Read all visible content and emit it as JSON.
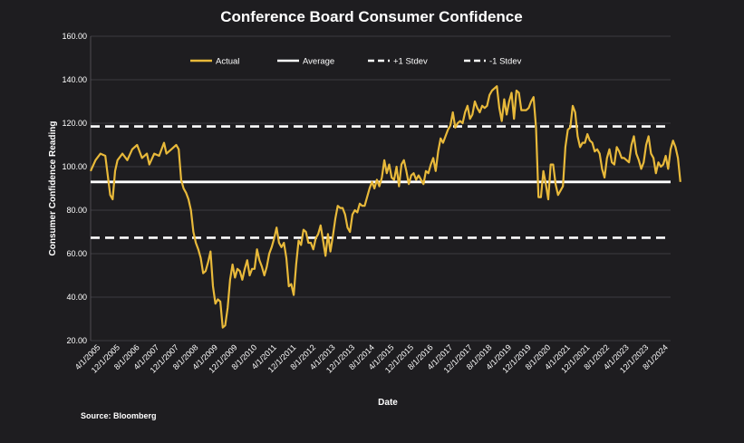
{
  "chart_data": {
    "type": "line",
    "title": "Conference Board Consumer Confidence",
    "xlabel": "Date",
    "ylabel": "Consumer Confidence Reading",
    "ylim": [
      20,
      160
    ],
    "yticks": [
      "20.00",
      "40.00",
      "60.00",
      "80.00",
      "100.00",
      "120.00",
      "140.00",
      "160.00"
    ],
    "grid": "horizontal",
    "legend_position": "top",
    "x_tick_labels": [
      "4/1/2005",
      "12/1/2005",
      "8/1/2006",
      "4/1/2007",
      "12/1/2007",
      "8/1/2008",
      "4/1/2009",
      "12/1/2009",
      "8/1/2010",
      "4/1/2011",
      "12/1/2011",
      "8/1/2012",
      "4/1/2013",
      "12/1/2013",
      "8/1/2014",
      "4/1/2015",
      "12/1/2015",
      "8/1/2016",
      "4/1/2017",
      "12/1/2017",
      "8/1/2018",
      "4/1/2019",
      "12/1/2019",
      "8/1/2020",
      "4/1/2021",
      "12/1/2021",
      "8/1/2022",
      "4/1/2023",
      "12/1/2023",
      "8/1/2024"
    ],
    "x_range": [
      "2005-01",
      "2024-10"
    ],
    "series": [
      {
        "name": "Actual",
        "color": "#e8b93a",
        "style": "solid",
        "points": [
          [
            "2005-01",
            98
          ],
          [
            "2005-03",
            103
          ],
          [
            "2005-05",
            106
          ],
          [
            "2005-07",
            105
          ],
          [
            "2005-09",
            87
          ],
          [
            "2005-10",
            85
          ],
          [
            "2005-11",
            98
          ],
          [
            "2005-12",
            103
          ],
          [
            "2006-02",
            106
          ],
          [
            "2006-04",
            103
          ],
          [
            "2006-06",
            108
          ],
          [
            "2006-08",
            110
          ],
          [
            "2006-10",
            104
          ],
          [
            "2006-12",
            106
          ],
          [
            "2007-01",
            101
          ],
          [
            "2007-03",
            106
          ],
          [
            "2007-05",
            105
          ],
          [
            "2007-07",
            111
          ],
          [
            "2007-08",
            106
          ],
          [
            "2007-10",
            108
          ],
          [
            "2007-12",
            110
          ],
          [
            "2008-01",
            108
          ],
          [
            "2008-02",
            94
          ],
          [
            "2008-03",
            90
          ],
          [
            "2008-04",
            88
          ],
          [
            "2008-05",
            85
          ],
          [
            "2008-06",
            80
          ],
          [
            "2008-07",
            70
          ],
          [
            "2008-08",
            65
          ],
          [
            "2008-09",
            62
          ],
          [
            "2008-10",
            58
          ],
          [
            "2008-11",
            51
          ],
          [
            "2008-12",
            52
          ],
          [
            "2009-01",
            56
          ],
          [
            "2009-02",
            61
          ],
          [
            "2009-03",
            45
          ],
          [
            "2009-04",
            37
          ],
          [
            "2009-05",
            39
          ],
          [
            "2009-06",
            38
          ],
          [
            "2009-07",
            26
          ],
          [
            "2009-08",
            27
          ],
          [
            "2009-09",
            35
          ],
          [
            "2009-10",
            48
          ],
          [
            "2009-11",
            55
          ],
          [
            "2009-12",
            49
          ],
          [
            "2010-01",
            53
          ],
          [
            "2010-02",
            52
          ],
          [
            "2010-03",
            48
          ],
          [
            "2010-04",
            53
          ],
          [
            "2010-05",
            57
          ],
          [
            "2010-06",
            50
          ],
          [
            "2010-07",
            53
          ],
          [
            "2010-08",
            53
          ],
          [
            "2010-09",
            62
          ],
          [
            "2010-10",
            57
          ],
          [
            "2010-11",
            54
          ],
          [
            "2010-12",
            50
          ],
          [
            "2011-01",
            54
          ],
          [
            "2011-02",
            60
          ],
          [
            "2011-03",
            63
          ],
          [
            "2011-04",
            67
          ],
          [
            "2011-05",
            72
          ],
          [
            "2011-06",
            65
          ],
          [
            "2011-07",
            63
          ],
          [
            "2011-08",
            65
          ],
          [
            "2011-09",
            58
          ],
          [
            "2011-10",
            45
          ],
          [
            "2011-11",
            46
          ],
          [
            "2011-12",
            41
          ],
          [
            "2012-01",
            55
          ],
          [
            "2012-02",
            66
          ],
          [
            "2012-03",
            64
          ],
          [
            "2012-04",
            71
          ],
          [
            "2012-05",
            70
          ],
          [
            "2012-06",
            65
          ],
          [
            "2012-07",
            65
          ],
          [
            "2012-08",
            62
          ],
          [
            "2012-09",
            67
          ],
          [
            "2012-10",
            69
          ],
          [
            "2012-11",
            73
          ],
          [
            "2012-12",
            66
          ],
          [
            "2013-01",
            59
          ],
          [
            "2013-02",
            69
          ],
          [
            "2013-03",
            61
          ],
          [
            "2013-04",
            68
          ],
          [
            "2013-05",
            76
          ],
          [
            "2013-06",
            82
          ],
          [
            "2013-07",
            81
          ],
          [
            "2013-08",
            81
          ],
          [
            "2013-09",
            78
          ],
          [
            "2013-10",
            72
          ],
          [
            "2013-11",
            70
          ],
          [
            "2013-12",
            78
          ],
          [
            "2014-01",
            80
          ],
          [
            "2014-02",
            79
          ],
          [
            "2014-03",
            83
          ],
          [
            "2014-04",
            82
          ],
          [
            "2014-05",
            82
          ],
          [
            "2014-06",
            86
          ],
          [
            "2014-07",
            90
          ],
          [
            "2014-08",
            93
          ],
          [
            "2014-09",
            90
          ],
          [
            "2014-10",
            94
          ],
          [
            "2014-11",
            91
          ],
          [
            "2014-12",
            95
          ],
          [
            "2015-01",
            103
          ],
          [
            "2015-02",
            97
          ],
          [
            "2015-03",
            101
          ],
          [
            "2015-04",
            95
          ],
          [
            "2015-05",
            94
          ],
          [
            "2015-06",
            100
          ],
          [
            "2015-07",
            91
          ],
          [
            "2015-08",
            101
          ],
          [
            "2015-09",
            103
          ],
          [
            "2015-10",
            98
          ],
          [
            "2015-11",
            92
          ],
          [
            "2015-12",
            96
          ],
          [
            "2016-01",
            97
          ],
          [
            "2016-02",
            94
          ],
          [
            "2016-03",
            96
          ],
          [
            "2016-04",
            94
          ],
          [
            "2016-05",
            92
          ],
          [
            "2016-06",
            98
          ],
          [
            "2016-07",
            97
          ],
          [
            "2016-08",
            101
          ],
          [
            "2016-09",
            104
          ],
          [
            "2016-10",
            98
          ],
          [
            "2016-11",
            107
          ],
          [
            "2016-12",
            113
          ],
          [
            "2017-01",
            111
          ],
          [
            "2017-02",
            114
          ],
          [
            "2017-03",
            117
          ],
          [
            "2017-04",
            119
          ],
          [
            "2017-05",
            125
          ],
          [
            "2017-06",
            118
          ],
          [
            "2017-07",
            120
          ],
          [
            "2017-08",
            121
          ],
          [
            "2017-09",
            120
          ],
          [
            "2017-10",
            125
          ],
          [
            "2017-11",
            128
          ],
          [
            "2017-12",
            122
          ],
          [
            "2018-01",
            124
          ],
          [
            "2018-02",
            130
          ],
          [
            "2018-03",
            127
          ],
          [
            "2018-04",
            125
          ],
          [
            "2018-05",
            128
          ],
          [
            "2018-06",
            127
          ],
          [
            "2018-07",
            128
          ],
          [
            "2018-08",
            133
          ],
          [
            "2018-09",
            135
          ],
          [
            "2018-10",
            136
          ],
          [
            "2018-11",
            137
          ],
          [
            "2018-12",
            127
          ],
          [
            "2019-01",
            121
          ],
          [
            "2019-02",
            131
          ],
          [
            "2019-03",
            124
          ],
          [
            "2019-04",
            130
          ],
          [
            "2019-05",
            134
          ],
          [
            "2019-06",
            122
          ],
          [
            "2019-07",
            135
          ],
          [
            "2019-08",
            134
          ],
          [
            "2019-09",
            126
          ],
          [
            "2019-10",
            126
          ],
          [
            "2019-11",
            126
          ],
          [
            "2019-12",
            127
          ],
          [
            "2020-01",
            130
          ],
          [
            "2020-02",
            132
          ],
          [
            "2020-03",
            118
          ],
          [
            "2020-04",
            86
          ],
          [
            "2020-05",
            86
          ],
          [
            "2020-06",
            98
          ],
          [
            "2020-07",
            92
          ],
          [
            "2020-08",
            85
          ],
          [
            "2020-09",
            101
          ],
          [
            "2020-10",
            101
          ],
          [
            "2020-11",
            92
          ],
          [
            "2020-12",
            87
          ],
          [
            "2021-01",
            89
          ],
          [
            "2021-02",
            91
          ],
          [
            "2021-03",
            109
          ],
          [
            "2021-04",
            117
          ],
          [
            "2021-05",
            118
          ],
          [
            "2021-06",
            128
          ],
          [
            "2021-07",
            125
          ],
          [
            "2021-08",
            114
          ],
          [
            "2021-09",
            109
          ],
          [
            "2021-10",
            111
          ],
          [
            "2021-11",
            111
          ],
          [
            "2021-12",
            115
          ],
          [
            "2022-01",
            112
          ],
          [
            "2022-02",
            111
          ],
          [
            "2022-03",
            107
          ],
          [
            "2022-04",
            108
          ],
          [
            "2022-05",
            106
          ],
          [
            "2022-06",
            99
          ],
          [
            "2022-07",
            95
          ],
          [
            "2022-08",
            104
          ],
          [
            "2022-09",
            108
          ],
          [
            "2022-10",
            102
          ],
          [
            "2022-11",
            101
          ],
          [
            "2022-12",
            109
          ],
          [
            "2023-01",
            107
          ],
          [
            "2023-02",
            104
          ],
          [
            "2023-03",
            104
          ],
          [
            "2023-04",
            103
          ],
          [
            "2023-05",
            102
          ],
          [
            "2023-06",
            110
          ],
          [
            "2023-07",
            114
          ],
          [
            "2023-08",
            106
          ],
          [
            "2023-09",
            103
          ],
          [
            "2023-10",
            99
          ],
          [
            "2023-11",
            102
          ],
          [
            "2023-12",
            110
          ],
          [
            "2024-01",
            114
          ],
          [
            "2024-02",
            106
          ],
          [
            "2024-03",
            104
          ],
          [
            "2024-04",
            97
          ],
          [
            "2024-05",
            102
          ],
          [
            "2024-06",
            100
          ],
          [
            "2024-07",
            101
          ],
          [
            "2024-08",
            105
          ],
          [
            "2024-09",
            99
          ],
          [
            "2024-10",
            108
          ],
          [
            "2024-11",
            112
          ],
          [
            "2024-12",
            109
          ],
          [
            "2025-01",
            104
          ],
          [
            "2025-02",
            93
          ]
        ]
      },
      {
        "name": "Average",
        "color": "#ffffff",
        "style": "solid",
        "value": 93
      },
      {
        "name": "+1 Stdev",
        "color": "#ffffff",
        "style": "dashed",
        "value": 118.5
      },
      {
        "name": "-1 Stdev",
        "color": "#ffffff",
        "style": "dashed",
        "value": 67.3
      }
    ],
    "annotations": [
      "Source: Bloomberg"
    ]
  }
}
